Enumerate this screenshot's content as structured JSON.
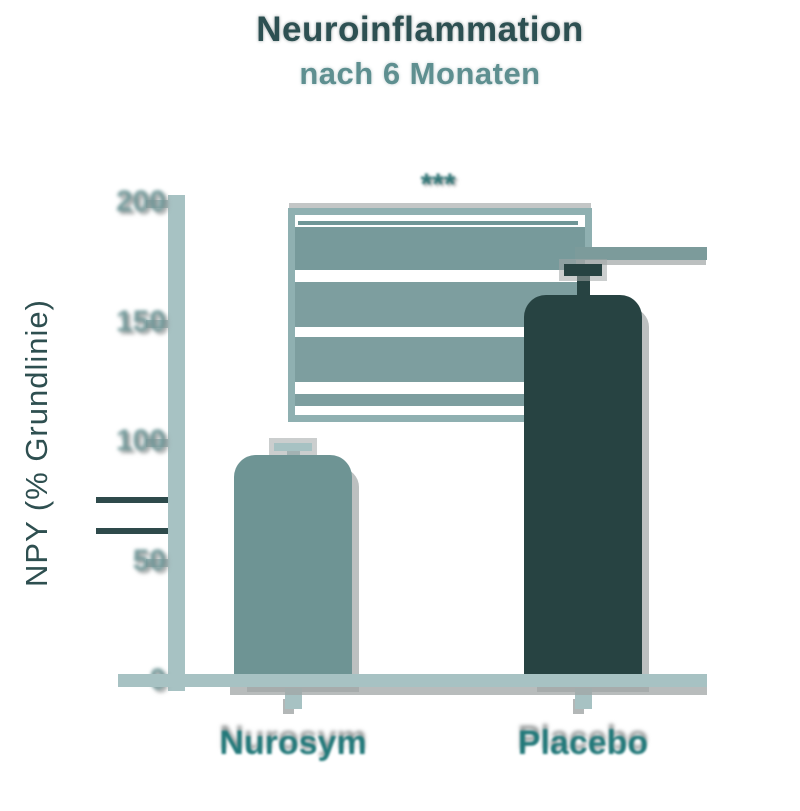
{
  "title": {
    "line1": "Neuroinflammation",
    "line2": "nach 6 Monaten"
  },
  "y_axis": {
    "label": "NPY (% Grundlinie)",
    "ticks": [
      0,
      50,
      100,
      150,
      200
    ]
  },
  "significance": "***",
  "chart_data": {
    "type": "bar",
    "title": "Neuroinflammation nach 6 Monaten",
    "ylabel": "NPY (% Grundlinie)",
    "ylim": [
      0,
      200
    ],
    "grid": false,
    "legend": "none",
    "categories": [
      "Nurosym",
      "Placebo"
    ],
    "values": [
      95,
      162
    ],
    "errors_plus": [
      5,
      13
    ],
    "annotations": [
      {
        "text": "***",
        "between": [
          "Nurosym",
          "Placebo"
        ]
      }
    ],
    "bar_colors": [
      "#6E9494",
      "#274342"
    ]
  },
  "colors": {
    "axis": "#A7C2C3",
    "bar_light": "#6E9494",
    "bar_dark": "#274342",
    "title_dark": "#2D5052",
    "title_light": "#5E8F90",
    "category_label": "#23797A",
    "tick_label": "#719899",
    "stars": "#2E7576"
  }
}
